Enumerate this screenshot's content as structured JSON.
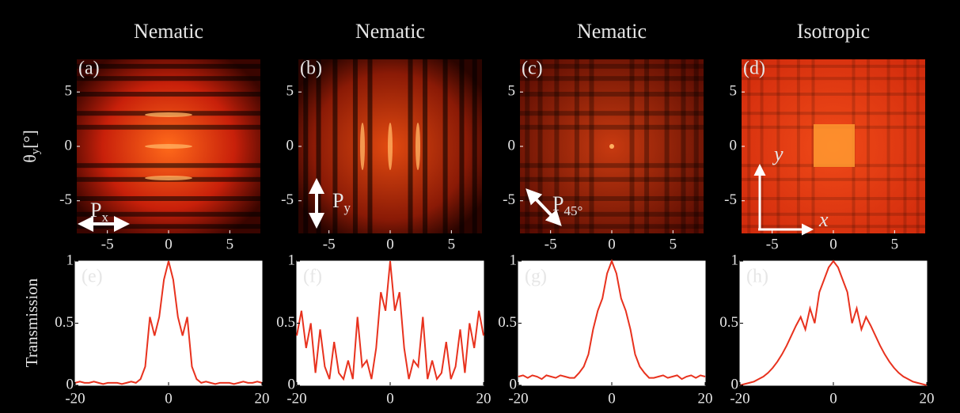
{
  "chart_data": [
    {
      "type": "image",
      "title": "Nematic",
      "label": "(a)",
      "xlim": [
        -7.5,
        7.5
      ],
      "ylim": [
        -8,
        8
      ],
      "xticks": [
        -5,
        0,
        5
      ],
      "yticks": [
        -5,
        0,
        5
      ],
      "ylabel": {
        "main": "θ",
        "sub": "y",
        "rest": "[°]"
      },
      "annotation": {
        "text": "P",
        "sub": "x"
      }
    },
    {
      "type": "image",
      "title": "Nematic",
      "label": "(b)",
      "xlim": [
        -7.5,
        7.5
      ],
      "ylim": [
        -8,
        8
      ],
      "xticks": [
        -5,
        0,
        5
      ],
      "yticks": [
        -5,
        0,
        5
      ],
      "annotation": {
        "text": "P",
        "sub": "y"
      }
    },
    {
      "type": "image",
      "title": "Nematic",
      "label": "(c)",
      "xlim": [
        -7.5,
        7.5
      ],
      "ylim": [
        -8,
        8
      ],
      "xticks": [
        -5,
        0,
        5
      ],
      "yticks": [
        -5,
        0,
        5
      ],
      "annotation": {
        "text": "P",
        "sub": "45°"
      }
    },
    {
      "type": "image",
      "title": "Isotropic",
      "label": "(d)",
      "xlim": [
        -7.5,
        7.5
      ],
      "ylim": [
        -8,
        8
      ],
      "xticks": [
        -5,
        0,
        5
      ],
      "yticks": [
        -5,
        0,
        5
      ],
      "axis_arrow_labels": {
        "x": "x",
        "y": "y"
      }
    },
    {
      "type": "line",
      "label": "(e)",
      "ylabel": "Transmission",
      "color": "#e8321e",
      "xlim": [
        -20,
        20
      ],
      "ylim": [
        0,
        1
      ],
      "xticks": [
        -20,
        0,
        20
      ],
      "yticks": [
        0,
        0.5,
        1
      ],
      "x": [
        -20,
        -19,
        -18,
        -17,
        -16,
        -15,
        -14,
        -13,
        -12,
        -11,
        -10,
        -9,
        -8,
        -7,
        -6,
        -5,
        -4,
        -3,
        -2,
        -1,
        0,
        1,
        2,
        3,
        4,
        5,
        6,
        7,
        8,
        9,
        10,
        11,
        12,
        13,
        14,
        15,
        16,
        17,
        18,
        19,
        20
      ],
      "values": [
        0.02,
        0.03,
        0.02,
        0.02,
        0.03,
        0.02,
        0.01,
        0.02,
        0.02,
        0.02,
        0.01,
        0.02,
        0.03,
        0.02,
        0.05,
        0.15,
        0.55,
        0.4,
        0.55,
        0.85,
        1,
        0.85,
        0.55,
        0.4,
        0.55,
        0.15,
        0.05,
        0.02,
        0.03,
        0.02,
        0.01,
        0.02,
        0.02,
        0.02,
        0.01,
        0.02,
        0.03,
        0.02,
        0.02,
        0.03,
        0.02
      ]
    },
    {
      "type": "line",
      "label": "(f)",
      "color": "#e8321e",
      "xlim": [
        -20,
        20
      ],
      "ylim": [
        0,
        1
      ],
      "xticks": [
        -20,
        0,
        20
      ],
      "yticks": [
        0,
        0.5,
        1
      ],
      "x": [
        -20,
        -19,
        -18,
        -17,
        -16,
        -15,
        -14,
        -13,
        -12,
        -11,
        -10,
        -9,
        -8,
        -7,
        -6,
        -5,
        -4,
        -3,
        -2,
        -1,
        0,
        1,
        2,
        3,
        4,
        5,
        6,
        7,
        8,
        9,
        10,
        11,
        12,
        13,
        14,
        15,
        16,
        17,
        18,
        19,
        20
      ],
      "values": [
        0.4,
        0.6,
        0.3,
        0.5,
        0.1,
        0.45,
        0.15,
        0.05,
        0.35,
        0.1,
        0.05,
        0.2,
        0.05,
        0.55,
        0.15,
        0.2,
        0.05,
        0.3,
        0.75,
        0.6,
        1,
        0.6,
        0.75,
        0.3,
        0.05,
        0.2,
        0.15,
        0.55,
        0.05,
        0.2,
        0.05,
        0.1,
        0.35,
        0.05,
        0.15,
        0.45,
        0.1,
        0.5,
        0.3,
        0.6,
        0.4
      ]
    },
    {
      "type": "line",
      "label": "(g)",
      "color": "#e8321e",
      "xlim": [
        -20,
        20
      ],
      "ylim": [
        0,
        1
      ],
      "xticks": [
        -20,
        0,
        20
      ],
      "yticks": [
        0,
        0.5,
        1
      ],
      "x": [
        -20,
        -19,
        -18,
        -17,
        -16,
        -15,
        -14,
        -13,
        -12,
        -11,
        -10,
        -9,
        -8,
        -7,
        -6,
        -5,
        -4,
        -3,
        -2,
        -1,
        0,
        1,
        2,
        3,
        4,
        5,
        6,
        7,
        8,
        9,
        10,
        11,
        12,
        13,
        14,
        15,
        16,
        17,
        18,
        19,
        20
      ],
      "values": [
        0.07,
        0.08,
        0.06,
        0.08,
        0.07,
        0.05,
        0.08,
        0.07,
        0.06,
        0.08,
        0.07,
        0.06,
        0.06,
        0.1,
        0.15,
        0.25,
        0.45,
        0.6,
        0.7,
        0.9,
        1,
        0.9,
        0.7,
        0.6,
        0.45,
        0.25,
        0.15,
        0.1,
        0.06,
        0.06,
        0.07,
        0.08,
        0.06,
        0.07,
        0.08,
        0.05,
        0.07,
        0.08,
        0.06,
        0.08,
        0.07
      ]
    },
    {
      "type": "line",
      "label": "(h)",
      "color": "#e8321e",
      "xlim": [
        -20,
        20
      ],
      "ylim": [
        0,
        1
      ],
      "xticks": [
        -20,
        0,
        20
      ],
      "yticks": [
        0,
        0.5,
        1
      ],
      "x": [
        -20,
        -19,
        -18,
        -17,
        -16,
        -15,
        -14,
        -13,
        -12,
        -11,
        -10,
        -9,
        -8,
        -7,
        -6,
        -5,
        -4,
        -3,
        -2,
        -1,
        0,
        1,
        2,
        3,
        4,
        5,
        6,
        7,
        8,
        9,
        10,
        11,
        12,
        13,
        14,
        15,
        16,
        17,
        18,
        19,
        20
      ],
      "values": [
        0.0,
        0.01,
        0.02,
        0.03,
        0.05,
        0.07,
        0.1,
        0.14,
        0.19,
        0.25,
        0.32,
        0.4,
        0.48,
        0.55,
        0.45,
        0.62,
        0.5,
        0.75,
        0.85,
        0.95,
        1,
        0.95,
        0.85,
        0.75,
        0.5,
        0.62,
        0.45,
        0.55,
        0.48,
        0.4,
        0.32,
        0.25,
        0.19,
        0.14,
        0.1,
        0.07,
        0.05,
        0.03,
        0.02,
        0.01,
        0.0
      ]
    }
  ]
}
